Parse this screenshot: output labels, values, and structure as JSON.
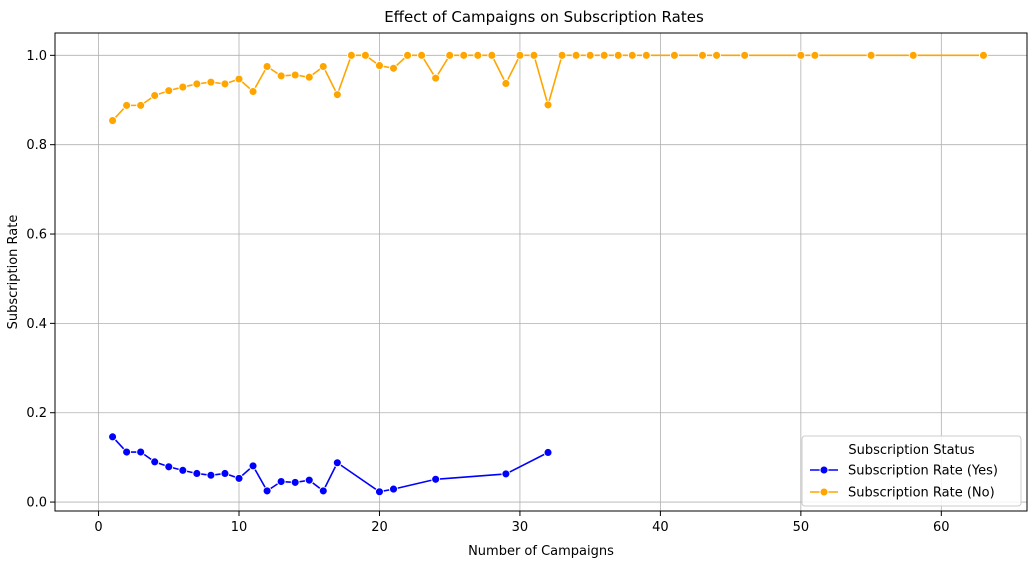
{
  "chart_data": {
    "type": "line",
    "title": "Effect of Campaigns on Subscription Rates",
    "xlabel": "Number of Campaigns",
    "ylabel": "Subscription Rate",
    "xlim": [
      -3.1,
      66.1
    ],
    "ylim": [
      -0.02,
      1.05
    ],
    "xticks": [
      0,
      10,
      20,
      30,
      40,
      50,
      60
    ],
    "yticks": [
      0.0,
      0.2,
      0.4,
      0.6,
      0.8,
      1.0
    ],
    "xtick_labels": [
      "0",
      "10",
      "20",
      "30",
      "40",
      "50",
      "60"
    ],
    "ytick_labels": [
      "0.0",
      "0.2",
      "0.4",
      "0.6",
      "0.8",
      "1.0"
    ],
    "grid": true,
    "legend": {
      "title": "Subscription Status",
      "placement": "lower-right"
    },
    "series": [
      {
        "name": "Subscription Rate (Yes)",
        "color": "#0000ff",
        "x": [
          1,
          2,
          3,
          4,
          5,
          6,
          7,
          8,
          9,
          10,
          11,
          12,
          13,
          14,
          15,
          16,
          17,
          20,
          21,
          24,
          29,
          32
        ],
        "y": [
          0.146,
          0.112,
          0.112,
          0.09,
          0.079,
          0.071,
          0.064,
          0.06,
          0.064,
          0.053,
          0.081,
          0.025,
          0.046,
          0.044,
          0.049,
          0.025,
          0.088,
          0.023,
          0.029,
          0.051,
          0.063,
          0.111
        ]
      },
      {
        "name": "Subscription Rate (No)",
        "color": "#ffa500",
        "x": [
          1,
          2,
          3,
          4,
          5,
          6,
          7,
          8,
          9,
          10,
          11,
          12,
          13,
          14,
          15,
          16,
          17,
          18,
          19,
          20,
          21,
          22,
          23,
          24,
          25,
          26,
          27,
          28,
          29,
          30,
          31,
          32,
          33,
          34,
          35,
          36,
          37,
          38,
          39,
          41,
          43,
          44,
          46,
          50,
          51,
          55,
          58,
          63
        ],
        "y": [
          0.854,
          0.888,
          0.888,
          0.91,
          0.921,
          0.929,
          0.936,
          0.94,
          0.936,
          0.947,
          0.919,
          0.975,
          0.954,
          0.956,
          0.951,
          0.975,
          0.912,
          1.0,
          1.0,
          0.977,
          0.971,
          1.0,
          1.0,
          0.949,
          1.0,
          1.0,
          1.0,
          1.0,
          0.937,
          1.0,
          1.0,
          0.889,
          1.0,
          1.0,
          1.0,
          1.0,
          1.0,
          1.0,
          1.0,
          1.0,
          1.0,
          1.0,
          1.0,
          1.0,
          1.0,
          1.0,
          1.0,
          1.0
        ]
      }
    ]
  }
}
